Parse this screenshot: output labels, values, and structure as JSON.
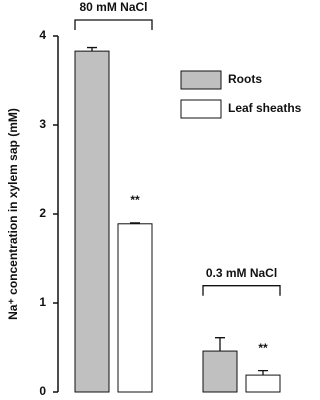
{
  "chart_data": {
    "type": "bar",
    "categories": [
      "80 mM NaCl",
      "0.3 mM NaCl"
    ],
    "y_label": "Na⁺ concentration in xylem sap (mM)",
    "ylim": [
      0,
      4
    ],
    "yticks": [
      0,
      1,
      2,
      3,
      4
    ],
    "legend": "upper right",
    "series": [
      {
        "name": "Roots",
        "color": "#c0c0c0",
        "values": [
          3.83,
          0.46
        ],
        "errors": [
          0.04,
          0.15
        ]
      },
      {
        "name": "Leaf sheaths",
        "color": "#ffffff",
        "values": [
          1.89,
          0.19
        ],
        "errors": [
          0.01,
          0.05
        ],
        "annotations": [
          "**",
          "**"
        ]
      }
    ]
  }
}
